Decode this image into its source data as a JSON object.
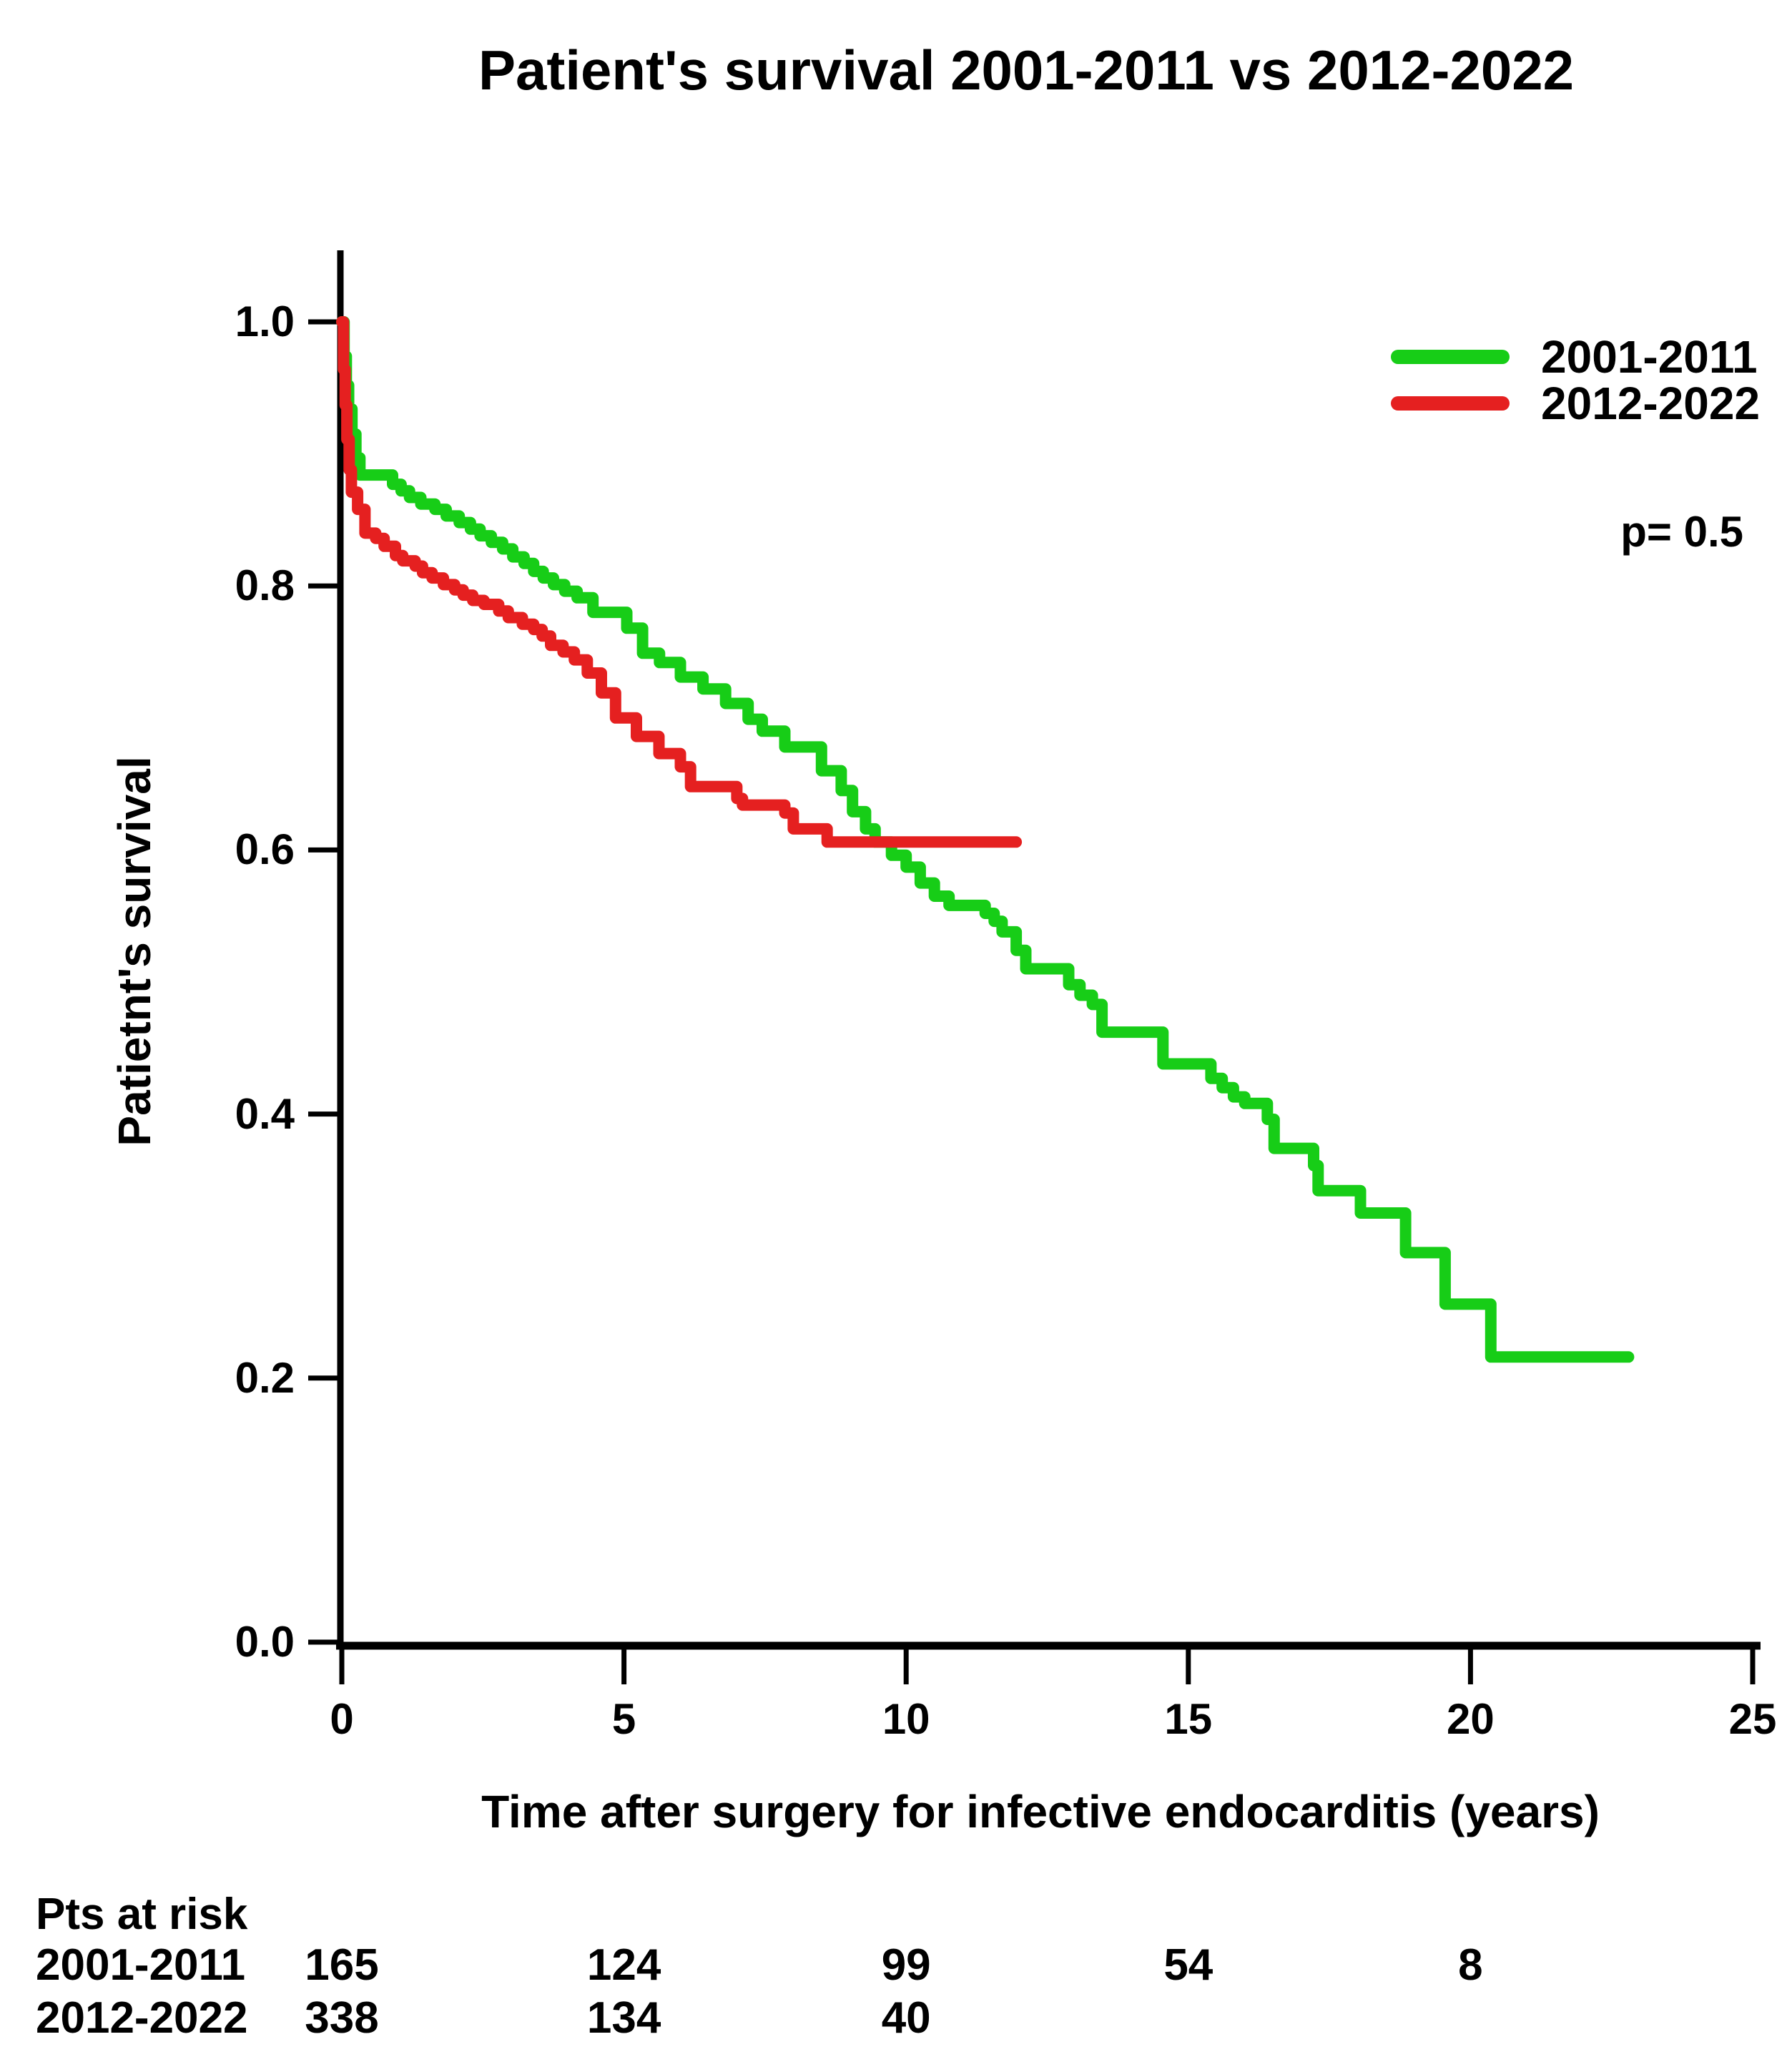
{
  "title": "Patient's survival 2001-2011 vs 2012-2022",
  "p_value": "p= 0.5",
  "legend": {
    "items": [
      {
        "label": "2001-2011",
        "color": "#17cd17"
      },
      {
        "label": "2012-2022",
        "color": "#e52020"
      }
    ]
  },
  "chart_data": {
    "type": "line",
    "subtype": "kaplan-meier-step",
    "title": "Patient's survival 2001-2011 vs 2012-2022",
    "xlabel": "Time after surgery for infective endocarditis (years)",
    "ylabel": "Patietnt's survival",
    "xlim": [
      0,
      25
    ],
    "ylim": [
      0.0,
      1.0
    ],
    "x_ticks": [
      0,
      5,
      10,
      15,
      20,
      25
    ],
    "y_ticks": [
      "1.0",
      "0.8",
      "0.6",
      "0.4",
      "0.2",
      "0.0"
    ],
    "grid": false,
    "legend_position": "top-right",
    "annotations": [
      {
        "text": "p= 0.5",
        "position": "right"
      }
    ],
    "series": [
      {
        "name": "2001-2011",
        "color": "#17cd17",
        "points": [
          [
            0,
            1.0
          ],
          [
            0.04,
            0.974
          ],
          [
            0.08,
            0.952
          ],
          [
            0.12,
            0.934
          ],
          [
            0.18,
            0.915
          ],
          [
            0.25,
            0.897
          ],
          [
            0.32,
            0.884
          ],
          [
            0.9,
            0.877
          ],
          [
            1.05,
            0.872
          ],
          [
            1.2,
            0.867
          ],
          [
            1.4,
            0.862
          ],
          [
            1.65,
            0.858
          ],
          [
            1.85,
            0.853
          ],
          [
            2.08,
            0.848
          ],
          [
            2.28,
            0.843
          ],
          [
            2.45,
            0.838
          ],
          [
            2.65,
            0.833
          ],
          [
            2.85,
            0.828
          ],
          [
            3.03,
            0.822
          ],
          [
            3.23,
            0.817
          ],
          [
            3.4,
            0.811
          ],
          [
            3.57,
            0.806
          ],
          [
            3.75,
            0.801
          ],
          [
            3.95,
            0.796
          ],
          [
            4.17,
            0.791
          ],
          [
            4.45,
            0.78
          ],
          [
            5.05,
            0.768
          ],
          [
            5.33,
            0.749
          ],
          [
            5.63,
            0.742
          ],
          [
            6.0,
            0.731
          ],
          [
            6.4,
            0.722
          ],
          [
            6.8,
            0.711
          ],
          [
            7.2,
            0.699
          ],
          [
            7.45,
            0.69
          ],
          [
            7.85,
            0.678
          ],
          [
            8.5,
            0.66
          ],
          [
            8.85,
            0.645
          ],
          [
            9.05,
            0.629
          ],
          [
            9.28,
            0.616
          ],
          [
            9.45,
            0.606
          ],
          [
            9.74,
            0.596
          ],
          [
            10.0,
            0.587
          ],
          [
            10.25,
            0.575
          ],
          [
            10.5,
            0.565
          ],
          [
            10.76,
            0.558
          ],
          [
            11.4,
            0.552
          ],
          [
            11.56,
            0.546
          ],
          [
            11.7,
            0.538
          ],
          [
            11.95,
            0.524
          ],
          [
            12.12,
            0.51
          ],
          [
            12.88,
            0.498
          ],
          [
            13.08,
            0.49
          ],
          [
            13.3,
            0.483
          ],
          [
            13.47,
            0.462
          ],
          [
            14.55,
            0.438
          ],
          [
            15.4,
            0.427
          ],
          [
            15.6,
            0.42
          ],
          [
            15.8,
            0.413
          ],
          [
            16.0,
            0.408
          ],
          [
            16.4,
            0.396
          ],
          [
            16.52,
            0.374
          ],
          [
            17.22,
            0.361
          ],
          [
            17.3,
            0.342
          ],
          [
            18.05,
            0.325
          ],
          [
            18.85,
            0.295
          ],
          [
            19.55,
            0.256
          ],
          [
            20.36,
            0.216
          ],
          [
            22.8,
            0.216
          ]
        ]
      },
      {
        "name": "2012-2022",
        "color": "#e52020",
        "points": [
          [
            0,
            1.0
          ],
          [
            0.03,
            0.964
          ],
          [
            0.06,
            0.937
          ],
          [
            0.09,
            0.911
          ],
          [
            0.13,
            0.888
          ],
          [
            0.17,
            0.871
          ],
          [
            0.28,
            0.858
          ],
          [
            0.41,
            0.84
          ],
          [
            0.6,
            0.836
          ],
          [
            0.75,
            0.83
          ],
          [
            0.95,
            0.823
          ],
          [
            1.08,
            0.819
          ],
          [
            1.3,
            0.815
          ],
          [
            1.43,
            0.81
          ],
          [
            1.6,
            0.806
          ],
          [
            1.8,
            0.801
          ],
          [
            2.0,
            0.797
          ],
          [
            2.15,
            0.793
          ],
          [
            2.32,
            0.789
          ],
          [
            2.52,
            0.786
          ],
          [
            2.78,
            0.781
          ],
          [
            2.95,
            0.776
          ],
          [
            3.2,
            0.771
          ],
          [
            3.4,
            0.767
          ],
          [
            3.55,
            0.762
          ],
          [
            3.7,
            0.755
          ],
          [
            3.92,
            0.75
          ],
          [
            4.12,
            0.744
          ],
          [
            4.35,
            0.734
          ],
          [
            4.6,
            0.719
          ],
          [
            4.85,
            0.7
          ],
          [
            5.22,
            0.686
          ],
          [
            5.62,
            0.673
          ],
          [
            6.0,
            0.663
          ],
          [
            6.18,
            0.648
          ],
          [
            7.0,
            0.639
          ],
          [
            7.1,
            0.634
          ],
          [
            7.85,
            0.628
          ],
          [
            8.0,
            0.616
          ],
          [
            8.6,
            0.606
          ],
          [
            11.95,
            0.606
          ]
        ]
      }
    ]
  },
  "risk_table": {
    "header": "Pts at risk",
    "times": [
      0,
      5,
      10,
      15,
      20
    ],
    "rows": [
      {
        "label": "2001-2011",
        "counts": [
          "165",
          "124",
          "99",
          "54",
          "8"
        ]
      },
      {
        "label": "2012-2022",
        "counts": [
          "338",
          "134",
          "40"
        ]
      }
    ]
  }
}
